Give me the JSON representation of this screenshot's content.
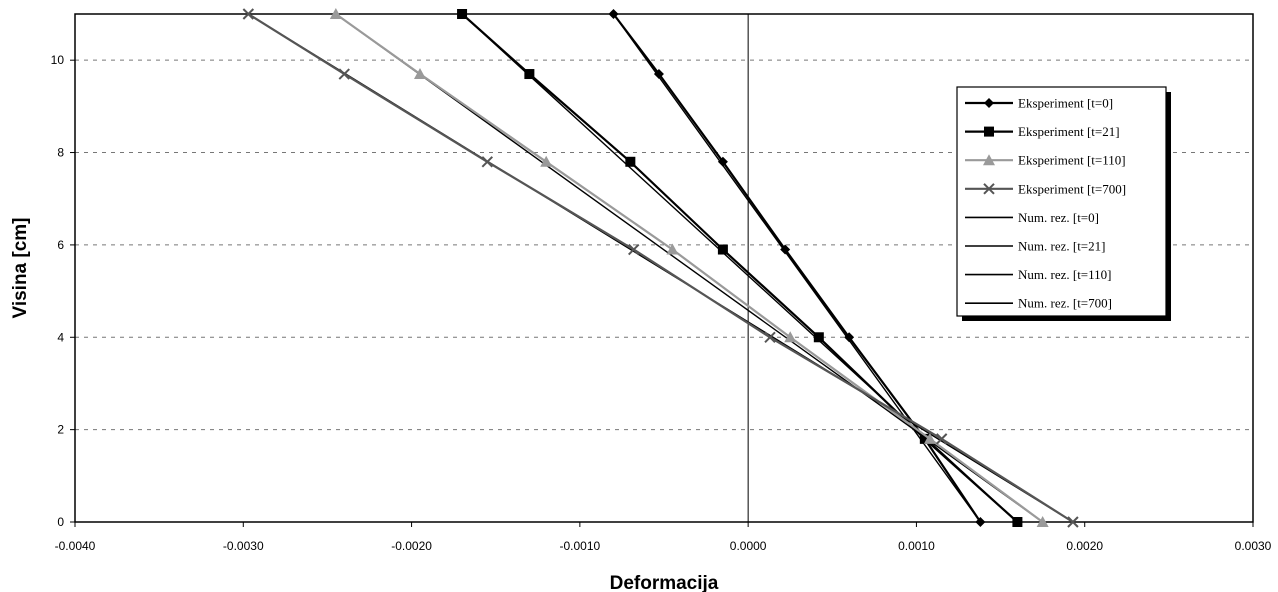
{
  "chart_data": {
    "type": "line",
    "title": "",
    "xlabel": "Deformacija",
    "ylabel": "Visina  [cm]",
    "xlim": [
      -0.004,
      0.003
    ],
    "ylim": [
      0,
      11
    ],
    "xticks": [
      "-0.0040",
      "-0.0030",
      "-0.0020",
      "-0.0010",
      "0.0000",
      "0.0010",
      "0.0020",
      "0.0030"
    ],
    "yticks": [
      "0",
      "2",
      "4",
      "6",
      "8",
      "10"
    ],
    "grid": "horizontal dashed",
    "legend_position": "right",
    "series": [
      {
        "name": "Eksperiment [t=0]",
        "marker": "diamond",
        "color": "#000000",
        "x": [
          -0.0008,
          -0.00053,
          -0.00015,
          0.00022,
          0.0006,
          0.00105,
          0.00138
        ],
        "y": [
          11,
          9.7,
          7.8,
          5.9,
          4,
          1.8,
          0
        ]
      },
      {
        "name": "Eksperiment [t=21]",
        "marker": "square",
        "color": "#000000",
        "x": [
          -0.0017,
          -0.0013,
          -0.0007,
          -0.00015,
          0.00042,
          0.00105,
          0.0016
        ],
        "y": [
          11,
          9.7,
          7.8,
          5.9,
          4,
          1.8,
          0
        ]
      },
      {
        "name": "Eksperiment [t=110]",
        "marker": "triangle",
        "color": "#9a9a9a",
        "x": [
          -0.00245,
          -0.00195,
          -0.0012,
          -0.00045,
          0.00025,
          0.00108,
          0.00175
        ],
        "y": [
          11,
          9.7,
          7.8,
          5.9,
          4,
          1.8,
          0
        ]
      },
      {
        "name": "Eksperiment [t=700]",
        "marker": "x",
        "color": "#555555",
        "x": [
          -0.00297,
          -0.0024,
          -0.00155,
          -0.00068,
          0.00013,
          0.00115,
          0.00193
        ],
        "y": [
          11,
          9.7,
          7.8,
          5.9,
          4,
          1.8,
          0
        ]
      },
      {
        "name": "Num. rez. [t=0]",
        "marker": "none",
        "color": "#000000",
        "x": [
          -0.0008,
          0.00138
        ],
        "y": [
          11,
          0
        ]
      },
      {
        "name": "Num. rez. [t=21]",
        "marker": "none",
        "color": "#000000",
        "x": [
          -0.0017,
          0.0016
        ],
        "y": [
          11,
          0
        ]
      },
      {
        "name": "Num. rez. [t=110]",
        "marker": "none",
        "color": "#000000",
        "x": [
          -0.00245,
          0.00175
        ],
        "y": [
          11,
          0
        ]
      },
      {
        "name": "Num. rez. [t=700]",
        "marker": "none",
        "color": "#000000",
        "x": [
          -0.00297,
          0.00193
        ],
        "y": [
          11,
          0
        ]
      }
    ]
  }
}
